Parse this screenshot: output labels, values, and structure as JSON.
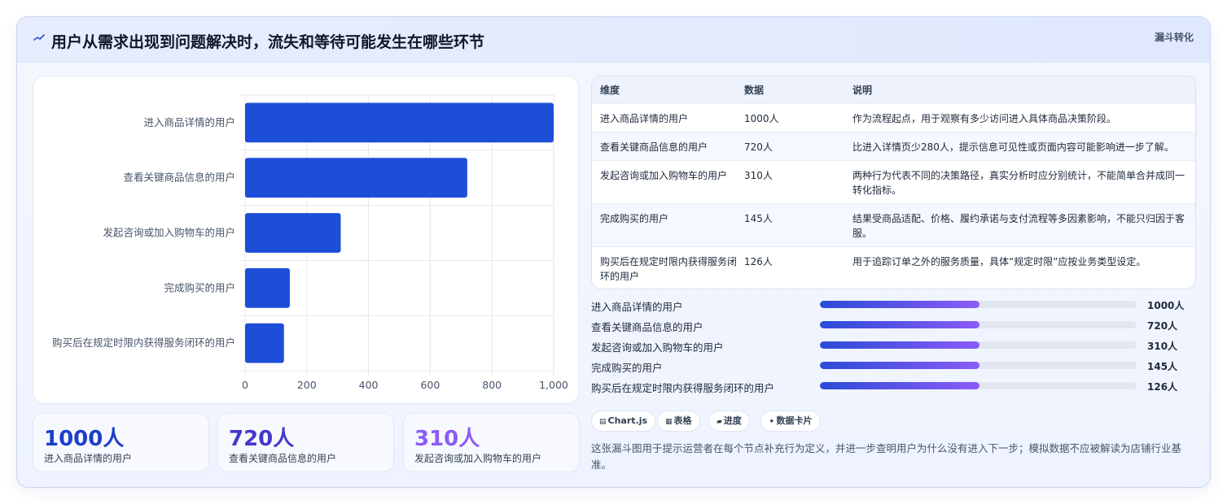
{
  "header": {
    "icon": "trend-icon",
    "title": "用户从需求出现到问题解决时，流失和等待可能发生在哪些环节",
    "tag": "漏斗转化"
  },
  "chart_data": {
    "type": "bar",
    "orientation": "horizontal",
    "categories": [
      "进入商品详情的用户",
      "查看关键商品信息的用户",
      "发起咨询或加入购物车的用户",
      "完成购买的用户",
      "购买后在规定时限内获得服务闭环的用户"
    ],
    "values": [
      1000,
      720,
      310,
      145,
      126
    ],
    "xlim": [
      0,
      1000
    ],
    "x_ticks": [
      "0",
      "200",
      "400",
      "600",
      "800",
      "1,000"
    ],
    "x_tick_values": [
      0,
      200,
      400,
      600,
      800,
      1000
    ],
    "bar_color": "#1d4ed8",
    "grid": true
  },
  "kpis": [
    {
      "value": "1000人",
      "label": "进入商品详情的用户",
      "color": "#1d3fc9"
    },
    {
      "value": "720人",
      "label": "查看关键商品信息的用户",
      "color": "#4338ca"
    },
    {
      "value": "310人",
      "label": "发起咨询或加入购物车的用户",
      "color": "#8b5cf6"
    }
  ],
  "table": {
    "headers": [
      "维度",
      "数据",
      "说明"
    ],
    "rows": [
      {
        "dim": "进入商品详情的用户",
        "data": "1000人",
        "desc": "作为流程起点，用于观察有多少访问进入具体商品决策阶段。"
      },
      {
        "dim": "查看关键商品信息的用户",
        "data": "720人",
        "desc": "比进入详情页少280人，提示信息可见性或页面内容可能影响进一步了解。"
      },
      {
        "dim": "发起咨询或加入购物车的用户",
        "data": "310人",
        "desc": "两种行为代表不同的决策路径，真实分析时应分别统计，不能简单合并成同一转化指标。"
      },
      {
        "dim": "完成购买的用户",
        "data": "145人",
        "desc": "结果受商品适配、价格、履约承诺与支付流程等多因素影响，不能只归因于客服。"
      },
      {
        "dim": "购买后在规定时限内获得服务闭环的用户",
        "data": "126人",
        "desc": "用于追踪订单之外的服务质量，具体“规定时限”应按业务类型设定。"
      }
    ]
  },
  "progress": [
    {
      "label": "进入商品详情的用户",
      "value": "1000人",
      "fill": 0.505
    },
    {
      "label": "查看关键商品信息的用户",
      "value": "720人",
      "fill": 0.505
    },
    {
      "label": "发起咨询或加入购物车的用户",
      "value": "310人",
      "fill": 0.505
    },
    {
      "label": "完成购买的用户",
      "value": "145人",
      "fill": 0.505
    },
    {
      "label": "购买后在规定时限内获得服务闭环的用户",
      "value": "126人",
      "fill": 0.505
    }
  ],
  "chips": [
    {
      "icon": "chart-icon",
      "glyph": "▤",
      "label": "Chart.js"
    },
    {
      "icon": "table-icon",
      "glyph": "▦",
      "label": "表格"
    },
    {
      "icon": "progress-icon",
      "glyph": "▰",
      "label": "进度"
    },
    {
      "icon": "sparkle-icon",
      "glyph": "✦",
      "label": "数据卡片"
    }
  ],
  "footnote": "这张漏斗图用于提示运营者在每个节点补充行为定义，并进一步查明用户为什么没有进入下一步；模拟数据不应被解读为店铺行业基准。"
}
